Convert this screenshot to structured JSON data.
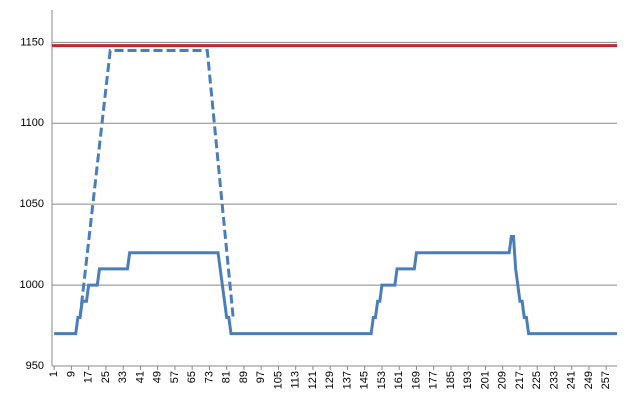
{
  "chart_data": {
    "type": "line",
    "xlim": [
      0,
      262
    ],
    "xticks": [
      1,
      9,
      17,
      25,
      33,
      41,
      49,
      57,
      65,
      73,
      81,
      89,
      97,
      105,
      113,
      121,
      129,
      137,
      145,
      153,
      161,
      169,
      177,
      185,
      193,
      201,
      209,
      217,
      225,
      233,
      241,
      249,
      257
    ],
    "ylim": [
      950,
      1170
    ],
    "yticks": [
      950,
      1000,
      1050,
      1100,
      1150
    ],
    "grid": true,
    "series": [
      {
        "color": "#4a7ebb",
        "style": "solid",
        "x": [
          1,
          11,
          12,
          13,
          14,
          16,
          17,
          21,
          22,
          35,
          36,
          77,
          78,
          80,
          81,
          82,
          83,
          148,
          149,
          150,
          151,
          152,
          153,
          159,
          160,
          168,
          169,
          212,
          213,
          214,
          215,
          216,
          217,
          218,
          219,
          220,
          221,
          262
        ],
        "values": [
          970,
          970,
          980,
          980,
          990,
          990,
          1000,
          1000,
          1010,
          1010,
          1020,
          1020,
          1010,
          990,
          980,
          980,
          970,
          970,
          980,
          980,
          990,
          990,
          1000,
          1000,
          1010,
          1010,
          1020,
          1020,
          1030,
          1030,
          1010,
          1000,
          990,
          990,
          980,
          980,
          970,
          970
        ]
      },
      {
        "color": "#4a7ebb",
        "style": "dashed",
        "x": [
          13,
          27,
          72,
          84
        ],
        "values": [
          980,
          1145,
          1145,
          980
        ]
      },
      {
        "color": "#c0272d",
        "style": "solid",
        "x": [
          0,
          262
        ],
        "values": [
          1148,
          1148
        ]
      }
    ]
  }
}
